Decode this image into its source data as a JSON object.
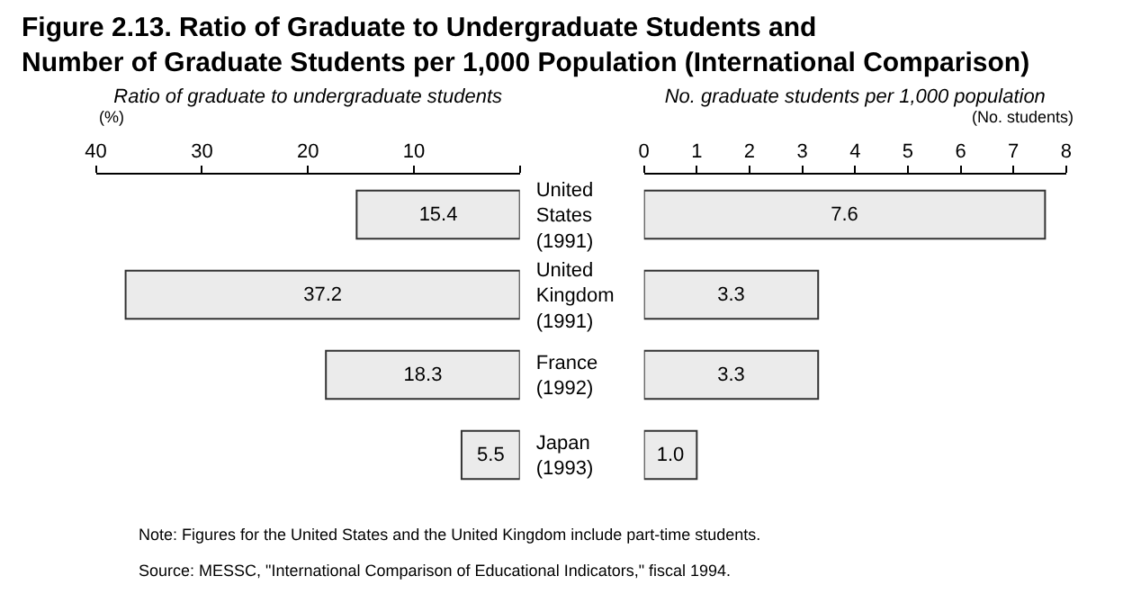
{
  "chart_data": [
    {
      "type": "bar",
      "orientation": "horizontal",
      "title": "Figure 2.13. Ratio of Graduate to Undergraduate Students and\nNumber of Graduate Students per 1,000 Population (International Comparison)",
      "xlabel": "Ratio of graduate to undergraduate students",
      "annotations": [
        "(%)"
      ],
      "categories": [
        "United\nStates\n(1991)",
        "United\nKingdom\n(1991)",
        "France\n(1992)",
        "Japan\n(1993)"
      ],
      "values": [
        15.4,
        37.2,
        18.3,
        5.5
      ],
      "value_labels": [
        "15.4",
        "37.2",
        "18.3",
        "5.5"
      ],
      "color": "#ebebeb",
      "xlim": [
        40,
        0
      ],
      "xticks": [
        40,
        30,
        20,
        10,
        {
          "value": 0,
          "label": null
        }
      ]
    },
    {
      "type": "bar",
      "orientation": "horizontal",
      "xlabel": "No. graduate students per 1,000 population",
      "annotations": [
        "(No. students)",
        "Note: Figures for the United States and the United Kingdom include part-time students.",
        "Source: MESSC, \"International Comparison of Educational Indicators,\" fiscal 1994."
      ],
      "categories": [
        null,
        null,
        null,
        null
      ],
      "values": [
        7.6,
        3.3,
        3.3,
        1.0
      ],
      "value_labels": [
        "7.6",
        "3.3",
        "3.3",
        "1.0"
      ],
      "color": "#ebebeb",
      "tick_labels": "x",
      "xlim": [
        0,
        8
      ],
      "xticks": [
        0,
        1,
        2,
        3,
        4,
        5,
        6,
        7,
        8
      ]
    }
  ]
}
